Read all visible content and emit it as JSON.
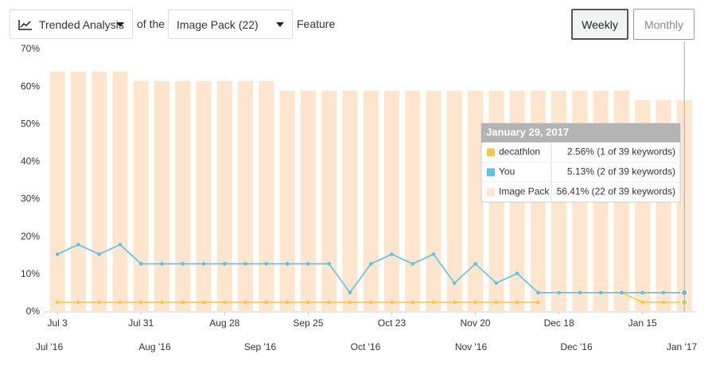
{
  "controls": {
    "analysis": "Trended Analysis",
    "connector": "of the",
    "feature": "Image Pack (22)",
    "suffix": "Feature",
    "weekly": "Weekly",
    "monthly": "Monthly"
  },
  "chart_data": {
    "type": "bar_line",
    "categories": [
      "Jul 3",
      null,
      null,
      null,
      "Jul 31",
      null,
      null,
      null,
      "Aug 28",
      null,
      null,
      null,
      "Sep 25",
      null,
      null,
      null,
      "Oct 23",
      null,
      null,
      null,
      "Nov 20",
      null,
      null,
      null,
      "Dec 18",
      null,
      null,
      null,
      "Jan 15",
      null,
      null
    ],
    "x_group_labels": [
      "Jul '16",
      "Aug '16",
      "Sep '16",
      "Oct '16",
      "Nov '16",
      "Dec '16",
      "Jan '17"
    ],
    "series": [
      {
        "name": "decathlon",
        "type": "line",
        "color": "#f7c843",
        "values": [
          2.56,
          2.56,
          2.56,
          2.56,
          2.56,
          2.56,
          2.56,
          2.56,
          2.56,
          2.56,
          2.56,
          2.56,
          2.56,
          2.56,
          2.56,
          2.56,
          2.56,
          2.56,
          2.56,
          2.56,
          2.56,
          2.56,
          2.56,
          2.56,
          null,
          null,
          null,
          5.13,
          2.56,
          2.56,
          2.56
        ],
        "value_labels": [
          null,
          null,
          null,
          null,
          null,
          null,
          null,
          null,
          null,
          null,
          null,
          null,
          null,
          null,
          null,
          null,
          null,
          null,
          null,
          null,
          null,
          null,
          null,
          null,
          null,
          null,
          null,
          null,
          null,
          null,
          "2.56% (1 of 39 keywords)"
        ]
      },
      {
        "name": "You",
        "type": "line",
        "color": "#5bc2ea",
        "values": [
          15.38,
          17.95,
          15.38,
          17.95,
          12.82,
          12.82,
          12.82,
          12.82,
          12.82,
          12.82,
          12.82,
          12.82,
          12.82,
          12.82,
          5.13,
          12.82,
          15.38,
          12.82,
          15.38,
          7.69,
          12.82,
          7.69,
          10.26,
          5.13,
          5.13,
          5.13,
          5.13,
          5.13,
          5.13,
          5.13,
          5.13
        ],
        "value_labels": [
          null,
          null,
          null,
          null,
          null,
          null,
          null,
          null,
          null,
          null,
          null,
          null,
          null,
          null,
          null,
          null,
          null,
          null,
          null,
          null,
          null,
          null,
          null,
          null,
          null,
          null,
          null,
          null,
          null,
          null,
          "5.13% (2 of 39 keywords)"
        ]
      },
      {
        "name": "Image Pack",
        "type": "bar",
        "color": "#fde6cd",
        "values": [
          64.1,
          64.1,
          64.1,
          64.1,
          61.54,
          61.54,
          61.54,
          61.54,
          61.54,
          61.54,
          61.54,
          58.97,
          58.97,
          58.97,
          58.97,
          58.97,
          58.97,
          58.97,
          58.97,
          58.97,
          58.97,
          58.97,
          58.97,
          58.97,
          58.97,
          58.97,
          58.97,
          58.97,
          56.41,
          56.41,
          56.41
        ],
        "value_labels": [
          null,
          null,
          null,
          null,
          null,
          null,
          null,
          null,
          null,
          null,
          null,
          null,
          null,
          null,
          null,
          null,
          null,
          null,
          null,
          null,
          null,
          null,
          null,
          null,
          null,
          null,
          null,
          null,
          null,
          null,
          "56.41% (22 of 39 keywords)"
        ]
      }
    ],
    "tooltip": {
      "title": "January 29, 2017"
    },
    "ylim": [
      0,
      70
    ],
    "yticks": [
      {
        "value": 0,
        "label": "0%"
      },
      {
        "value": 10,
        "label": "10%"
      },
      {
        "value": 20,
        "label": "20%"
      },
      {
        "value": 30,
        "label": "30%"
      },
      {
        "value": 40,
        "label": "40%"
      },
      {
        "value": 50,
        "label": "50%"
      },
      {
        "value": 60,
        "label": "60%"
      },
      {
        "value": 70,
        "label": "70%"
      }
    ],
    "grid": false
  }
}
